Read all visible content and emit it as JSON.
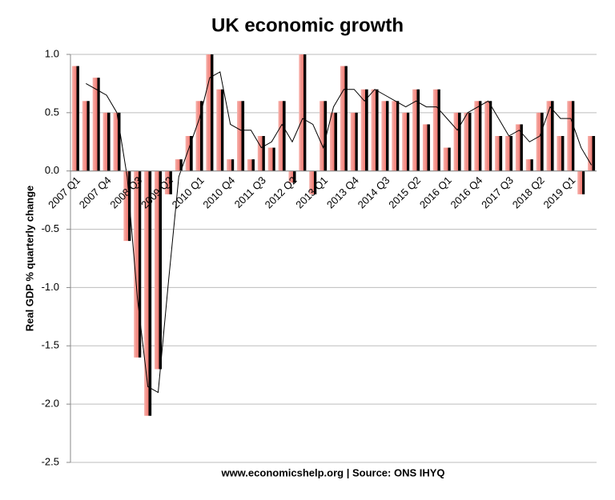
{
  "chart_data": {
    "type": "bar",
    "title": "UK economic growth",
    "y_label": "Real GDP % quarterly change",
    "source": "www.economicshelp.org | Source: ONS  IHYQ",
    "categories": [
      "2007 Q1",
      null,
      null,
      "2007 Q4",
      null,
      null,
      "2008 Q3",
      null,
      null,
      "2009 Q2",
      null,
      null,
      "2010 Q1",
      null,
      null,
      "2010 Q4",
      null,
      null,
      "2011 Q3",
      null,
      null,
      "2012 Q2",
      null,
      null,
      "2013 Q1",
      null,
      null,
      "2013 Q4",
      null,
      null,
      "2014 Q3",
      null,
      null,
      "2015 Q2",
      null,
      null,
      "2016 Q1",
      null,
      null,
      "2016 Q4",
      null,
      null,
      "2017 Q3",
      null,
      null,
      "2018 Q2",
      null,
      null,
      "2019 Q1",
      null,
      null
    ],
    "series": [
      {
        "type": "bar",
        "color": "#f28b82",
        "values": [
          0.9,
          0.6,
          0.8,
          0.5,
          0.5,
          -0.6,
          -1.6,
          -2.1,
          -1.7,
          -0.2,
          0.1,
          0.3,
          0.6,
          1.0,
          0.7,
          0.1,
          0.6,
          0.1,
          0.3,
          0.2,
          0.6,
          -0.1,
          1.0,
          -0.2,
          0.6,
          0.5,
          0.9,
          0.5,
          0.7,
          0.7,
          0.6,
          0.6,
          0.5,
          0.7,
          0.4,
          0.7,
          0.2,
          0.5,
          0.5,
          0.6,
          0.6,
          0.3,
          0.3,
          0.4,
          0.1,
          0.5,
          0.6,
          0.3,
          0.6,
          -0.2,
          0.3
        ]
      },
      {
        "type": "line",
        "color": "#000000",
        "values": [
          null,
          0.75,
          0.7,
          0.65,
          0.5,
          -0.05,
          -1.1,
          -1.85,
          -1.9,
          -0.95,
          -0.05,
          0.2,
          0.45,
          0.8,
          0.85,
          0.4,
          0.35,
          0.35,
          0.2,
          0.25,
          0.4,
          0.25,
          0.45,
          0.4,
          0.2,
          0.55,
          0.7,
          0.7,
          0.6,
          0.7,
          0.65,
          0.6,
          0.55,
          0.6,
          0.55,
          0.55,
          0.45,
          0.35,
          0.5,
          0.55,
          0.6,
          0.45,
          0.3,
          0.35,
          0.25,
          0.3,
          0.55,
          0.45,
          0.45,
          0.2,
          0.05
        ]
      }
    ],
    "ylim": [
      -2.5,
      1.0
    ],
    "yticks": [
      {
        "value": 1.0,
        "label": "1.0"
      },
      {
        "value": 0.5,
        "label": "0.5"
      },
      {
        "value": 0,
        "label": "0.0"
      },
      {
        "value": -0.5,
        "label": "-0.5"
      },
      {
        "value": -1.0,
        "label": "-1.0"
      },
      {
        "value": -1.5,
        "label": "-1.5"
      },
      {
        "value": -2.0,
        "label": "-2.0"
      },
      {
        "value": -2.5,
        "label": "-2.5"
      }
    ],
    "grid": true
  }
}
